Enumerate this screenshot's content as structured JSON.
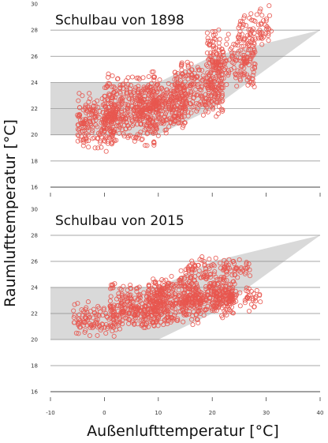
{
  "chart_data": {
    "type": "scatter",
    "ylabel": "Raumlufttemperatur  [°C]",
    "xlabel": "Außenlufttemperatur  [°C]",
    "colors": {
      "points": "#e8574f",
      "comfort_band": "#d9d9d9",
      "axis": "#444444"
    },
    "x_ticks": [
      "-10",
      "0",
      "10",
      "20",
      "30",
      "40"
    ],
    "xlim": [
      -10,
      40
    ],
    "panels": [
      {
        "title": "Schulbau von 1898",
        "ylim": [
          16,
          30
        ],
        "y_ticks": [
          "16",
          "18",
          "20",
          "22",
          "24",
          "26",
          "28",
          "30"
        ],
        "comfort_band": {
          "x": [
            -10,
            10,
            20,
            40
          ],
          "lower": [
            20,
            20,
            22,
            28
          ],
          "upper": [
            24,
            24,
            26,
            28
          ]
        },
        "clusters": [
          {
            "x_range": [
              -5,
              2
            ],
            "y_range": [
              18.5,
              23.5
            ],
            "n": 200
          },
          {
            "x_range": [
              0,
              10
            ],
            "y_range": [
              19.0,
              25.0
            ],
            "n": 360
          },
          {
            "x_range": [
              6,
              15
            ],
            "y_range": [
              20.0,
              24.5
            ],
            "n": 260
          },
          {
            "x_range": [
              13,
              22
            ],
            "y_range": [
              21.0,
              26.0
            ],
            "n": 260
          },
          {
            "x_range": [
              19,
              28
            ],
            "y_range": [
              23.0,
              28.5
            ],
            "n": 220
          },
          {
            "x_range": [
              25,
              31
            ],
            "y_range": [
              26.5,
              30.0
            ],
            "n": 70
          }
        ]
      },
      {
        "title": "Schulbau von 2015",
        "ylim": [
          16,
          30
        ],
        "y_ticks": [
          "16",
          "18",
          "20",
          "22",
          "24",
          "26",
          "28",
          "30"
        ],
        "comfort_band": {
          "x": [
            -10,
            10,
            20,
            40
          ],
          "lower": [
            20,
            20,
            22,
            28
          ],
          "upper": [
            24,
            24,
            26,
            28
          ]
        },
        "clusters": [
          {
            "x_range": [
              -6,
              3
            ],
            "y_range": [
              20.2,
              23.0
            ],
            "n": 110
          },
          {
            "x_range": [
              1,
              12
            ],
            "y_range": [
              20.5,
              24.5
            ],
            "n": 300
          },
          {
            "x_range": [
              8,
              18
            ],
            "y_range": [
              21.0,
              25.0
            ],
            "n": 260
          },
          {
            "x_range": [
              14,
              24
            ],
            "y_range": [
              21.5,
              25.5
            ],
            "n": 260
          },
          {
            "x_range": [
              15,
              27
            ],
            "y_range": [
              24.5,
              26.5
            ],
            "n": 90
          },
          {
            "x_range": [
              20,
              29
            ],
            "y_range": [
              22.0,
              24.5
            ],
            "n": 90
          }
        ]
      }
    ]
  }
}
